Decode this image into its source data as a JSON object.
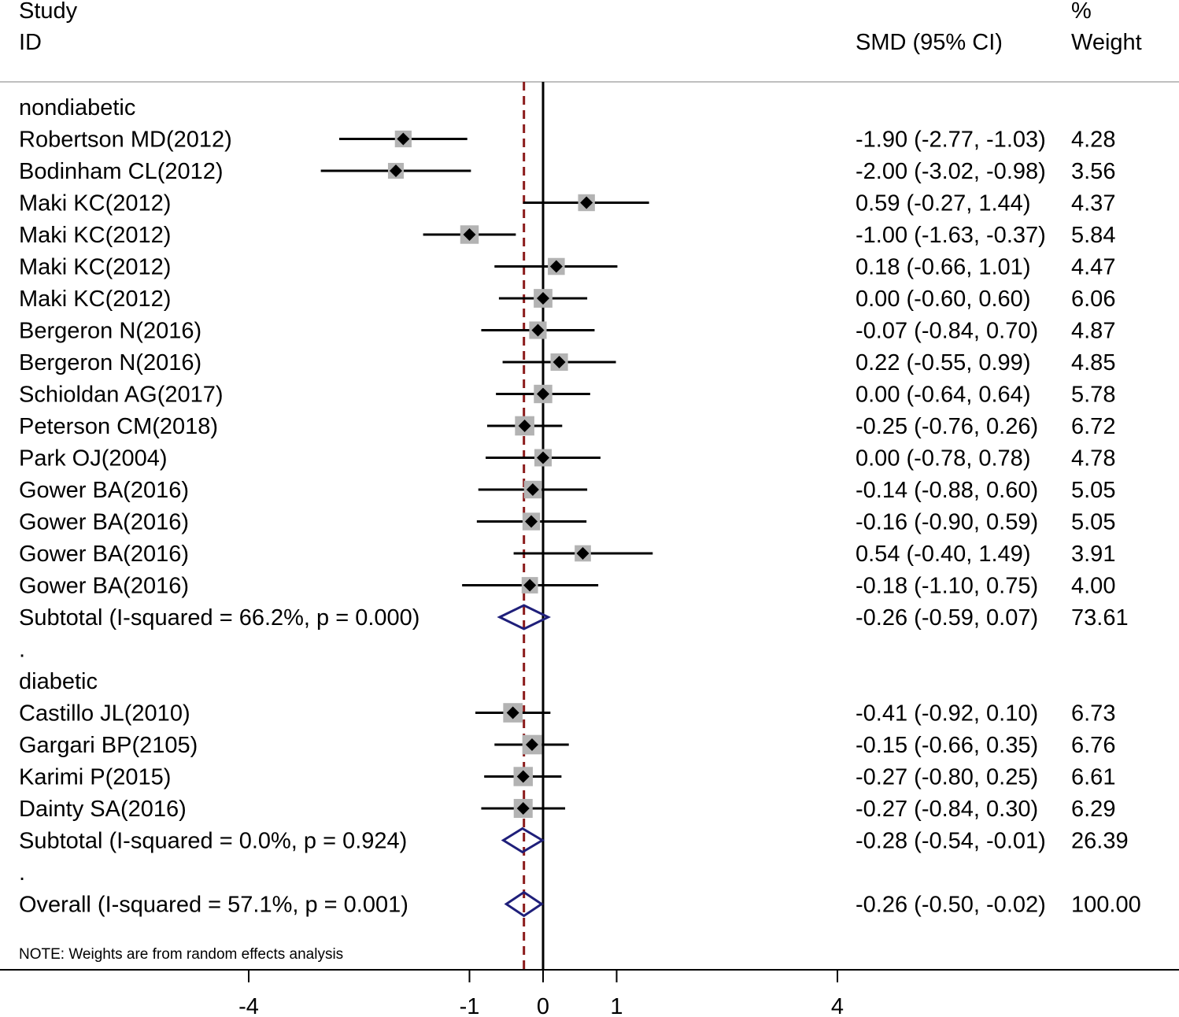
{
  "chart_data": {
    "type": "forest",
    "measure": "SMD",
    "headers": {
      "study_line1": "Study",
      "study_line2": "ID",
      "estimate": "SMD (95% CI)",
      "weight_line1": "%",
      "weight_line2": "Weight"
    },
    "groups": [
      {
        "name": "nondiabetic",
        "studies": [
          {
            "label": "Robertson MD(2012)",
            "est": -1.9,
            "lo": -2.77,
            "hi": -1.03,
            "ci_text": "-1.90 (-2.77, -1.03)",
            "weight": "4.28"
          },
          {
            "label": "Bodinham CL(2012)",
            "est": -2.0,
            "lo": -3.02,
            "hi": -0.98,
            "ci_text": "-2.00 (-3.02, -0.98)",
            "weight": "3.56"
          },
          {
            "label": "Maki KC(2012)",
            "est": 0.59,
            "lo": -0.27,
            "hi": 1.44,
            "ci_text": "0.59 (-0.27, 1.44)",
            "weight": "4.37"
          },
          {
            "label": "Maki KC(2012)",
            "est": -1.0,
            "lo": -1.63,
            "hi": -0.37,
            "ci_text": "-1.00 (-1.63, -0.37)",
            "weight": "5.84"
          },
          {
            "label": "Maki KC(2012)",
            "est": 0.18,
            "lo": -0.66,
            "hi": 1.01,
            "ci_text": "0.18 (-0.66, 1.01)",
            "weight": "4.47"
          },
          {
            "label": "Maki KC(2012)",
            "est": 0.0,
            "lo": -0.6,
            "hi": 0.6,
            "ci_text": "0.00 (-0.60, 0.60)",
            "weight": "6.06"
          },
          {
            "label": "Bergeron N(2016)",
            "est": -0.07,
            "lo": -0.84,
            "hi": 0.7,
            "ci_text": "-0.07 (-0.84, 0.70)",
            "weight": "4.87"
          },
          {
            "label": "Bergeron N(2016)",
            "est": 0.22,
            "lo": -0.55,
            "hi": 0.99,
            "ci_text": "0.22 (-0.55, 0.99)",
            "weight": "4.85"
          },
          {
            "label": "Schioldan AG(2017)",
            "est": 0.0,
            "lo": -0.64,
            "hi": 0.64,
            "ci_text": "0.00 (-0.64, 0.64)",
            "weight": "5.78"
          },
          {
            "label": "Peterson CM(2018)",
            "est": -0.25,
            "lo": -0.76,
            "hi": 0.26,
            "ci_text": "-0.25 (-0.76, 0.26)",
            "weight": "6.72"
          },
          {
            "label": "Park OJ(2004)",
            "est": 0.0,
            "lo": -0.78,
            "hi": 0.78,
            "ci_text": "0.00 (-0.78, 0.78)",
            "weight": "4.78"
          },
          {
            "label": "Gower BA(2016)",
            "est": -0.14,
            "lo": -0.88,
            "hi": 0.6,
            "ci_text": "-0.14 (-0.88, 0.60)",
            "weight": "5.05"
          },
          {
            "label": "Gower BA(2016)",
            "est": -0.16,
            "lo": -0.9,
            "hi": 0.59,
            "ci_text": "-0.16 (-0.90, 0.59)",
            "weight": "5.05"
          },
          {
            "label": "Gower BA(2016)",
            "est": 0.54,
            "lo": -0.4,
            "hi": 1.49,
            "ci_text": "0.54 (-0.40, 1.49)",
            "weight": "3.91"
          },
          {
            "label": "Gower BA(2016)",
            "est": -0.18,
            "lo": -1.1,
            "hi": 0.75,
            "ci_text": "-0.18 (-1.10, 0.75)",
            "weight": "4.00"
          }
        ],
        "subtotal": {
          "label": "Subtotal  (I-squared = 66.2%, p = 0.000)",
          "est": -0.26,
          "lo": -0.59,
          "hi": 0.07,
          "ci_text": "-0.26 (-0.59, 0.07)",
          "weight": "73.61"
        },
        "separator": "."
      },
      {
        "name": "diabetic",
        "studies": [
          {
            "label": "Castillo JL(2010)",
            "est": -0.41,
            "lo": -0.92,
            "hi": 0.1,
            "ci_text": "-0.41 (-0.92, 0.10)",
            "weight": "6.73"
          },
          {
            "label": "Gargari BP(2105)",
            "est": -0.15,
            "lo": -0.66,
            "hi": 0.35,
            "ci_text": "-0.15 (-0.66, 0.35)",
            "weight": "6.76"
          },
          {
            "label": "Karimi P(2015)",
            "est": -0.27,
            "lo": -0.8,
            "hi": 0.25,
            "ci_text": "-0.27 (-0.80, 0.25)",
            "weight": "6.61"
          },
          {
            "label": "Dainty SA(2016)",
            "est": -0.27,
            "lo": -0.84,
            "hi": 0.3,
            "ci_text": "-0.27 (-0.84, 0.30)",
            "weight": "6.29"
          }
        ],
        "subtotal": {
          "label": "Subtotal  (I-squared = 0.0%, p = 0.924)",
          "est": -0.28,
          "lo": -0.54,
          "hi": -0.01,
          "ci_text": "-0.28 (-0.54, -0.01)",
          "weight": "26.39"
        },
        "separator": "."
      }
    ],
    "overall": {
      "label": "Overall  (I-squared = 57.1%, p = 0.001)",
      "est": -0.26,
      "lo": -0.5,
      "hi": -0.02,
      "ci_text": "-0.26 (-0.50, -0.02)",
      "weight": "100.00"
    },
    "note": "NOTE: Weights are from random effects analysis",
    "x_axis": {
      "ticks": [
        -4,
        -1,
        0,
        1,
        4
      ],
      "tick_labels": [
        "-4",
        "-1",
        "0",
        "1",
        "4"
      ],
      "null_value": 0
    },
    "colors": {
      "line": "#000000",
      "marker_box": "#b3b3b3",
      "diamond": "#1f1f7a",
      "overall_line": "#8b1a1a",
      "frame": "#bfbfbf"
    }
  }
}
